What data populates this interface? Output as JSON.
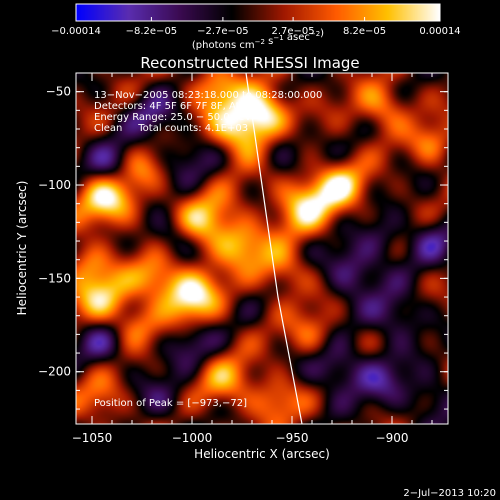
{
  "chart_data": {
    "type": "heatmap",
    "title": "Reconstructed RHESSI Image",
    "xlabel": "Heliocentric X (arcsec)",
    "ylabel": "Heliocentric Y (arcsec)",
    "xlim": [
      -1058,
      -872
    ],
    "ylim": [
      -228,
      -40
    ],
    "x_ticks": [
      -1050,
      -1000,
      -950,
      -900
    ],
    "x_tick_labels": [
      "−1050",
      "−1000",
      "−950",
      "−900"
    ],
    "y_ticks": [
      -50,
      -100,
      -150,
      -200
    ],
    "y_tick_labels": [
      "−50",
      "−100",
      "−150",
      "−200"
    ],
    "colorbar": {
      "ticks": [
        -0.00014,
        -8.2e-05,
        -2.7e-05,
        2.7e-05,
        8.2e-05,
        0.00014
      ],
      "tick_labels": [
        "−0.00014",
        "−8.2e−05",
        "−2.7e−05",
        "2.7e−05",
        "8.2e−05",
        "0.00014"
      ],
      "range": [
        -0.00014,
        0.00014
      ],
      "units_text": "(photons cm",
      "units_exp1": "−2",
      "units_mid": " s",
      "units_exp2": "−1",
      "units_end": " asec",
      "units_exp3": "−2",
      "units_close": ")",
      "colormap": [
        "#0000ff",
        "#5a2db0",
        "#3a0a50",
        "#000000",
        "#a01800",
        "#ff5a00",
        "#ffc000",
        "#ffffff"
      ]
    },
    "annotations": [
      "13−Nov−2005 08:23:18.000 to 08:28:00.000",
      "Detectors: 4F 5F 6F 7F 8F, Att 0",
      "Energy Range: 25.0 − 50.0 keV",
      "Clean     Total counts: 4.1E+03"
    ],
    "peak_label": "Position of Peak = [−973,−72]",
    "peak": [
      -973,
      -72
    ],
    "limb_curve": [
      [
        -973,
        -40
      ],
      [
        -965,
        -100
      ],
      [
        -957,
        -160
      ],
      [
        -945,
        -228
      ]
    ],
    "blobs": [
      {
        "x": -975,
        "y": -70,
        "v": 1.0,
        "s": 11
      },
      {
        "x": -963,
        "y": -60,
        "v": 0.8,
        "s": 9
      },
      {
        "x": -988,
        "y": -48,
        "v": 0.6,
        "s": 9
      },
      {
        "x": -1042,
        "y": -108,
        "v": 0.95,
        "s": 10
      },
      {
        "x": -1025,
        "y": -92,
        "v": 0.45,
        "s": 8
      },
      {
        "x": -993,
        "y": -120,
        "v": 0.75,
        "s": 11
      },
      {
        "x": -975,
        "y": -132,
        "v": 0.65,
        "s": 9
      },
      {
        "x": -943,
        "y": -110,
        "v": 0.85,
        "s": 11
      },
      {
        "x": -925,
        "y": -100,
        "v": 0.7,
        "s": 9
      },
      {
        "x": -905,
        "y": -58,
        "v": 0.6,
        "s": 9
      },
      {
        "x": -880,
        "y": -78,
        "v": 0.5,
        "s": 8
      },
      {
        "x": -955,
        "y": -145,
        "v": 0.55,
        "s": 9
      },
      {
        "x": -1045,
        "y": -160,
        "v": 0.75,
        "s": 10
      },
      {
        "x": -1018,
        "y": -150,
        "v": 0.65,
        "s": 9
      },
      {
        "x": -1000,
        "y": -160,
        "v": 0.95,
        "s": 10
      },
      {
        "x": -1028,
        "y": -175,
        "v": 0.45,
        "s": 8
      },
      {
        "x": -1052,
        "y": -142,
        "v": 0.5,
        "s": 8
      },
      {
        "x": -983,
        "y": -205,
        "v": 0.55,
        "s": 10
      },
      {
        "x": -958,
        "y": -215,
        "v": 0.5,
        "s": 9
      },
      {
        "x": -940,
        "y": -180,
        "v": 0.45,
        "s": 9
      },
      {
        "x": -1045,
        "y": -215,
        "v": 0.45,
        "s": 9
      },
      {
        "x": -1040,
        "y": -90,
        "v": -0.55,
        "s": 9
      },
      {
        "x": -1020,
        "y": -62,
        "v": -0.45,
        "s": 9
      },
      {
        "x": -1010,
        "y": -128,
        "v": -0.5,
        "s": 8
      },
      {
        "x": -1000,
        "y": -85,
        "v": -0.35,
        "s": 10
      },
      {
        "x": -955,
        "y": -80,
        "v": -0.4,
        "s": 9
      },
      {
        "x": -920,
        "y": -145,
        "v": -0.6,
        "s": 10
      },
      {
        "x": -898,
        "y": -170,
        "v": -0.5,
        "s": 10
      },
      {
        "x": -928,
        "y": -198,
        "v": -0.55,
        "s": 10
      },
      {
        "x": -905,
        "y": -205,
        "v": -0.45,
        "s": 10
      },
      {
        "x": -1000,
        "y": -185,
        "v": -0.4,
        "s": 9
      },
      {
        "x": -1045,
        "y": -185,
        "v": -0.45,
        "s": 9
      },
      {
        "x": -880,
        "y": -130,
        "v": -0.45,
        "s": 9
      },
      {
        "x": -880,
        "y": -215,
        "v": -0.4,
        "s": 9
      },
      {
        "x": -1015,
        "y": -215,
        "v": -0.35,
        "s": 9
      },
      {
        "x": -905,
        "y": -128,
        "v": -0.35,
        "s": 8
      }
    ]
  },
  "footer": {
    "timestamp": "2−Jul−2013 10:20"
  }
}
